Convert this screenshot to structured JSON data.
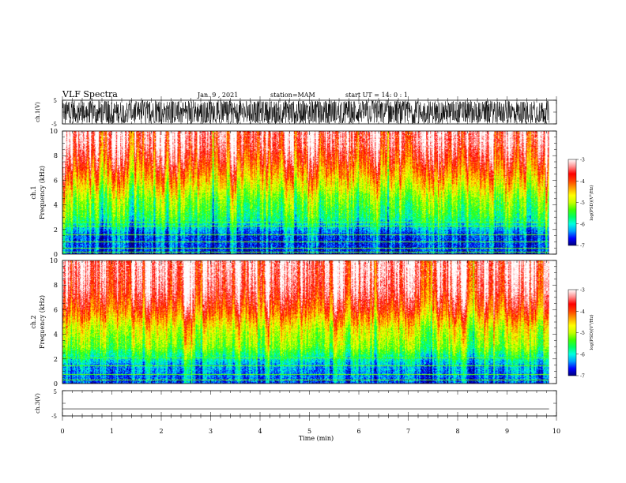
{
  "header": {
    "title": "VLF Spectra",
    "date": "Jan. 9 , 2021",
    "station": "station=MAM",
    "start": "start UT = 14: 0 : 1"
  },
  "chart_data": [
    {
      "type": "line",
      "panel": "ch1-waveform",
      "ylabel": "ch.1(V)",
      "ylim": [
        -5,
        5
      ],
      "yticks": [
        "5",
        "-5"
      ],
      "xlim": [
        0,
        10
      ],
      "description_signal": "dense broadband oscillation, amplitude ~ ±5 V, 0 to ~9.85 min",
      "data_end_min": 9.85,
      "amplitude_v": 5
    },
    {
      "type": "heatmap",
      "panel": "ch1-spectrogram",
      "ylabel": "ch.1\nFrequency (kHz)",
      "ylabel_lines": [
        "ch.1",
        "Frequency (kHz)"
      ],
      "ylim": [
        0,
        10
      ],
      "yticks": [
        "0",
        "2",
        "4",
        "6",
        "8",
        "10"
      ],
      "xlim": [
        0,
        10
      ],
      "data_end_min": 9.85,
      "colorbar": {
        "label": "log(PSD)(V^2/Hz)",
        "label_parts": [
          "log(PSD)(V",
          "2",
          "/Hz)"
        ],
        "range": [
          -7,
          -3
        ],
        "ticks": [
          "-3",
          "-4",
          "-5",
          "-6",
          "-7"
        ]
      },
      "profile_kHz_to_level": [
        [
          0,
          0.1
        ],
        [
          1.5,
          0.12
        ],
        [
          3,
          0.35
        ],
        [
          4.5,
          0.45
        ],
        [
          6,
          0.62
        ],
        [
          7.5,
          0.78
        ],
        [
          9,
          0.9
        ],
        [
          10,
          0.93
        ]
      ],
      "horizontal_lines_kHz": [
        0.2,
        0.5,
        1.0,
        1.6,
        2.3,
        2.6
      ]
    },
    {
      "type": "heatmap",
      "panel": "ch2-spectrogram",
      "ylabel": "ch.2\nFrequency (kHz)",
      "ylabel_lines": [
        "ch.2",
        "Frequency (kHz)"
      ],
      "ylim": [
        0,
        10
      ],
      "yticks": [
        "0",
        "2",
        "4",
        "6",
        "8",
        "10"
      ],
      "xlim": [
        0,
        10
      ],
      "data_end_min": 9.85,
      "colorbar": {
        "label": "log(PSD)(V^2/Hz)",
        "label_parts": [
          "log(PSD)(V",
          "2",
          "/Hz)"
        ],
        "range": [
          -7,
          -3
        ],
        "ticks": [
          "-3",
          "-4",
          "-5",
          "-6",
          "-7"
        ]
      },
      "profile_kHz_to_level": [
        [
          0,
          0.12
        ],
        [
          1.5,
          0.2
        ],
        [
          3,
          0.45
        ],
        [
          4.5,
          0.55
        ],
        [
          6,
          0.75
        ],
        [
          7.5,
          0.88
        ],
        [
          9,
          0.93
        ],
        [
          10,
          0.95
        ]
      ],
      "horizontal_lines_kHz": [
        0.3,
        0.8,
        1.5,
        2.1
      ]
    },
    {
      "type": "line",
      "panel": "ch3-waveform",
      "ylabel": "ch.3(V)",
      "ylim": [
        -5,
        5
      ],
      "yticks": [
        "5",
        "-5"
      ],
      "xlim": [
        0,
        10
      ],
      "constant_value_v": -2.2,
      "data_end_min": 9.85
    }
  ],
  "xaxis": {
    "label": "Time (min)",
    "range": [
      0,
      10
    ],
    "ticks": [
      "0",
      "1",
      "2",
      "3",
      "4",
      "5",
      "6",
      "7",
      "8",
      "9",
      "10"
    ]
  },
  "colormap": [
    "#00007a",
    "#0000ff",
    "#00a0ff",
    "#00ffe0",
    "#00ff60",
    "#40ff00",
    "#c8ff00",
    "#ffff00",
    "#ffa000",
    "#ff4000",
    "#ff0000",
    "#ff9090",
    "#ffffff"
  ]
}
